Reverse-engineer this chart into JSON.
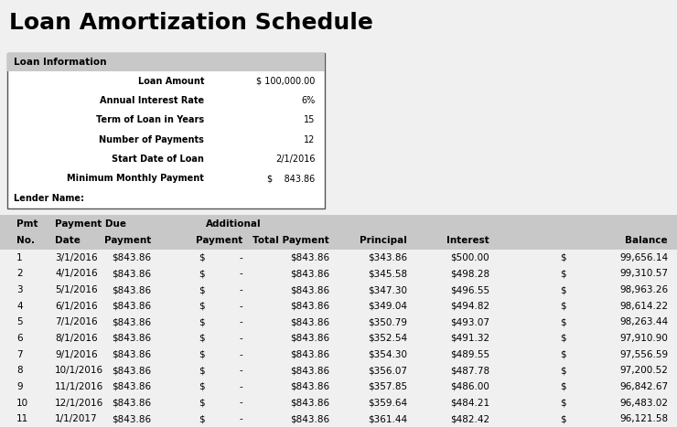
{
  "title": "Loan Amortization Schedule",
  "title_bg": "#c8c8c8",
  "title_fontsize": 18,
  "bg_color": "#f0f0f0",
  "table_bg": "#fefde8",
  "info_box": {
    "header": "Loan Information",
    "header_bg": "#c8c8c8",
    "rows": [
      [
        "Loan Amount",
        "$ 100,000.00"
      ],
      [
        "Annual Interest Rate",
        "6%"
      ],
      [
        "Term of Loan in Years",
        "15"
      ],
      [
        "Number of Payments",
        "12"
      ],
      [
        "Start Date of Loan",
        "2/1/2016"
      ],
      [
        "Minimum Monthly Payment",
        "$    843.86"
      ]
    ],
    "footer": "Lender Name:"
  },
  "table_header_bg": "#c8c8c8",
  "table_row_bg_odd": "#fefde8",
  "table_row_bg_even": "#fefde8",
  "rows": [
    [
      "1",
      "3/1/2016",
      "$843.86",
      "$",
      "-",
      "$843.86",
      "$343.86",
      "$500.00",
      "$",
      "99,656.14"
    ],
    [
      "2",
      "4/1/2016",
      "$843.86",
      "$",
      "-",
      "$843.86",
      "$345.58",
      "$498.28",
      "$",
      "99,310.57"
    ],
    [
      "3",
      "5/1/2016",
      "$843.86",
      "$",
      "-",
      "$843.86",
      "$347.30",
      "$496.55",
      "$",
      "98,963.26"
    ],
    [
      "4",
      "6/1/2016",
      "$843.86",
      "$",
      "-",
      "$843.86",
      "$349.04",
      "$494.82",
      "$",
      "98,614.22"
    ],
    [
      "5",
      "7/1/2016",
      "$843.86",
      "$",
      "-",
      "$843.86",
      "$350.79",
      "$493.07",
      "$",
      "98,263.44"
    ],
    [
      "6",
      "8/1/2016",
      "$843.86",
      "$",
      "-",
      "$843.86",
      "$352.54",
      "$491.32",
      "$",
      "97,910.90"
    ],
    [
      "7",
      "9/1/2016",
      "$843.86",
      "$",
      "-",
      "$843.86",
      "$354.30",
      "$489.55",
      "$",
      "97,556.59"
    ],
    [
      "8",
      "10/1/2016",
      "$843.86",
      "$",
      "-",
      "$843.86",
      "$356.07",
      "$487.78",
      "$",
      "97,200.52"
    ],
    [
      "9",
      "11/1/2016",
      "$843.86",
      "$",
      "-",
      "$843.86",
      "$357.85",
      "$486.00",
      "$",
      "96,842.67"
    ],
    [
      "10",
      "12/1/2016",
      "$843.86",
      "$",
      "-",
      "$843.86",
      "$359.64",
      "$484.21",
      "$",
      "96,483.02"
    ],
    [
      "11",
      "1/1/2017",
      "$843.86",
      "$",
      "-",
      "$843.86",
      "$361.44",
      "$482.42",
      "$",
      "96,121.58"
    ]
  ]
}
